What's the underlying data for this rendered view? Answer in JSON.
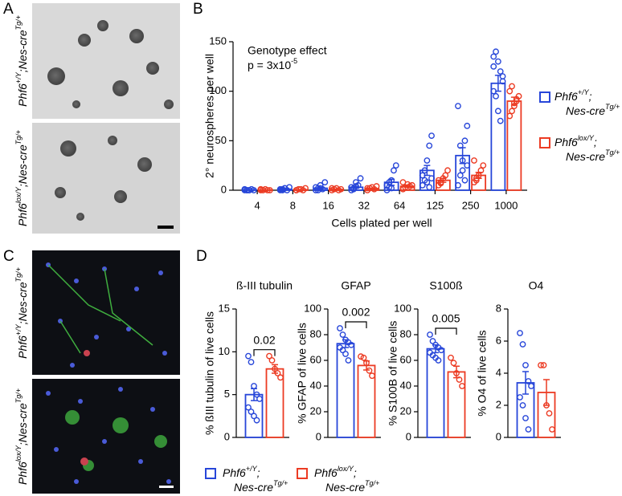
{
  "panels": [
    "A",
    "B",
    "C",
    "D"
  ],
  "images": [
    {
      "label": [
        "Phf6",
        "+/Y",
        ";Nes-cre",
        "Tg/+"
      ]
    },
    {
      "label": [
        "Phf6",
        "lox/Y",
        ";Nes-cre",
        "Tg/+"
      ]
    },
    {
      "label": [
        "Phf6",
        "+/Y",
        ";Nes-cre",
        "Tg/+"
      ]
    },
    {
      "label": [
        "Phf6",
        "lox/Y",
        ";Nes-cre",
        "Tg/+"
      ]
    }
  ],
  "chart_data": [
    {
      "type": "bar",
      "annotation": "Genotype effect",
      "annotation_p": [
        "p = 3x10",
        "-5"
      ],
      "y_label": "2° neurospheres per well",
      "x_label": "Cells plated per well",
      "categories": [
        "4",
        "8",
        "16",
        "32",
        "64",
        "125",
        "250",
        "1000"
      ],
      "ylim": [
        0,
        150
      ],
      "yticks": [
        0,
        50,
        100,
        150
      ],
      "series": [
        {
          "name": [
            [
              "Phf6",
              "+/Y",
              ";"
            ],
            [
              "Nes-cre",
              "Tg/+"
            ]
          ],
          "color": "#2746d9",
          "values": [
            0.5,
            1,
            2,
            3,
            8,
            20,
            35,
            108
          ],
          "errors": [
            0.2,
            0.5,
            1,
            1,
            3,
            5,
            8,
            8
          ],
          "points": [
            [
              0,
              0,
              0,
              1,
              0,
              1,
              0,
              0
            ],
            [
              0,
              1,
              2,
              0,
              3,
              1,
              0,
              2
            ],
            [
              0,
              2,
              5,
              1,
              8,
              3,
              0,
              2
            ],
            [
              0,
              2,
              8,
              5,
              12,
              3,
              1,
              4
            ],
            [
              0,
              3,
              10,
              20,
              25,
              5,
              8,
              2
            ],
            [
              5,
              10,
              30,
              45,
              55,
              15,
              20,
              8,
              3,
              12
            ],
            [
              5,
              15,
              30,
              50,
              65,
              85,
              45,
              20,
              10,
              25
            ],
            [
              135,
              140,
              130,
              120,
              110,
              100,
              95,
              80,
              70,
              115,
              125
            ]
          ]
        },
        {
          "name": [
            [
              "Phf6",
              "lox/Y",
              ";"
            ],
            [
              "Nes-cre",
              "Tg/+"
            ]
          ],
          "color": "#ec3b23",
          "values": [
            0.3,
            0.5,
            0.8,
            1.5,
            4,
            10,
            15,
            90
          ],
          "errors": [
            0.1,
            0.2,
            0.3,
            0.5,
            1,
            2,
            3,
            4
          ],
          "points": [
            [
              0,
              0,
              1,
              0,
              0,
              1
            ],
            [
              0,
              1,
              1,
              0,
              2,
              0
            ],
            [
              0,
              1,
              2,
              0,
              1,
              2
            ],
            [
              0,
              2,
              3,
              1,
              4,
              2
            ],
            [
              1,
              3,
              6,
              4,
              5,
              8
            ],
            [
              5,
              8,
              12,
              15,
              20,
              10,
              7
            ],
            [
              8,
              10,
              15,
              20,
              25,
              30,
              12
            ],
            [
              75,
              80,
              85,
              90,
              95,
              100,
              105,
              88,
              92
            ]
          ]
        }
      ]
    },
    {
      "type": "bar",
      "title": "ß-III tubulin",
      "y_label": "% ßIII tubulin of live cells",
      "p_label": "0.02",
      "ylim": [
        0,
        15
      ],
      "yticks": [
        0,
        5,
        10,
        15
      ],
      "series": [
        {
          "name": [
            [
              "Phf6",
              "+/Y",
              ";"
            ],
            [
              "Nes-cre",
              "Tg/+"
            ]
          ],
          "color": "#2746d9",
          "values": [
            5.0
          ],
          "errors": [
            0.7
          ],
          "points": [
            [
              9.5,
              8.8,
              6,
              5,
              4.5,
              3.5,
              3,
              2.5,
              2
            ]
          ]
        },
        {
          "name": [
            [
              "Phf6",
              "lox/Y",
              ";"
            ],
            [
              "Nes-cre",
              "Tg/+"
            ]
          ],
          "color": "#ec3b23",
          "values": [
            8.0
          ],
          "errors": [
            0.5
          ],
          "points": [
            [
              9.5,
              9,
              8,
              7.5,
              7
            ]
          ]
        }
      ]
    },
    {
      "type": "bar",
      "title": "GFAP",
      "y_label": "% GFAP of live cells",
      "p_label": "0.002",
      "ylim": [
        0,
        100
      ],
      "yticks": [
        0,
        20,
        40,
        60,
        80,
        100
      ],
      "series": [
        {
          "color": "#2746d9",
          "values": [
            73
          ],
          "errors": [
            3
          ],
          "points": [
            [
              85,
              80,
              76,
              74,
              72,
              70,
              68,
              65,
              60
            ]
          ]
        },
        {
          "color": "#ec3b23",
          "values": [
            56
          ],
          "errors": [
            3.5
          ],
          "points": [
            [
              63,
              62,
              58,
              52,
              48
            ]
          ]
        }
      ]
    },
    {
      "type": "bar",
      "title": "S100ß",
      "y_label": "% S100B of live cells",
      "p_label": "0.005",
      "ylim": [
        0,
        100
      ],
      "yticks": [
        0,
        20,
        40,
        60,
        80,
        100
      ],
      "series": [
        {
          "color": "#2746d9",
          "values": [
            69
          ],
          "errors": [
            3
          ],
          "points": [
            [
              80,
              75,
              72,
              70,
              68,
              66,
              64,
              62,
              60
            ]
          ]
        },
        {
          "color": "#ec3b23",
          "values": [
            51
          ],
          "errors": [
            4.5
          ],
          "points": [
            [
              62,
              58,
              50,
              45,
              40
            ]
          ]
        }
      ]
    },
    {
      "type": "bar",
      "title": "O4",
      "y_label": "% O4 of live cells",
      "ylim": [
        0,
        8
      ],
      "yticks": [
        0,
        2,
        4,
        6,
        8
      ],
      "series": [
        {
          "color": "#2746d9",
          "values": [
            3.4
          ],
          "errors": [
            0.7
          ],
          "points": [
            [
              6.5,
              5.8,
              4.5,
              3.5,
              3.2,
              2.5,
              2,
              1.2,
              0.5
            ]
          ]
        },
        {
          "color": "#ec3b23",
          "values": [
            2.8
          ],
          "errors": [
            0.8
          ],
          "points": [
            [
              4.5,
              4.5,
              2,
              1.5,
              0.5
            ]
          ]
        }
      ]
    }
  ]
}
